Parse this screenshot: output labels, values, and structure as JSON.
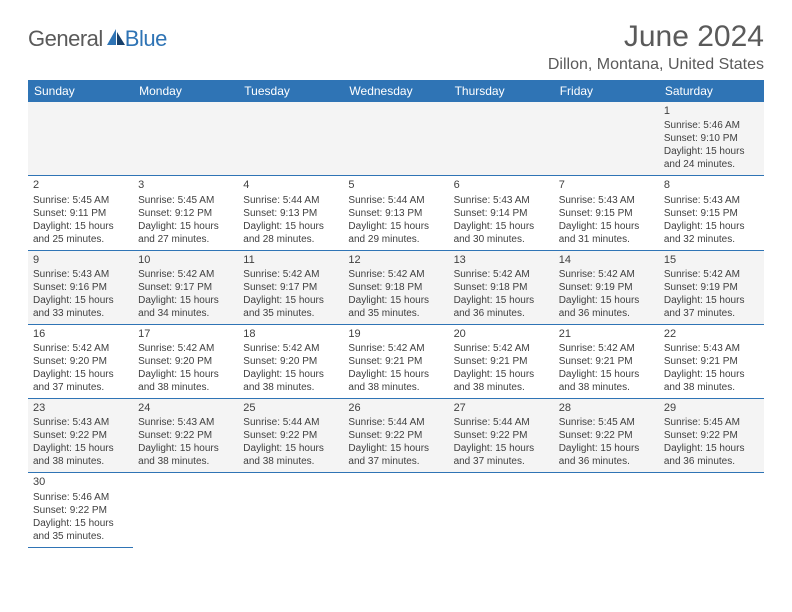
{
  "logo": {
    "part1": "General",
    "part2": "Blue"
  },
  "title": "June 2024",
  "location": "Dillon, Montana, United States",
  "colors": {
    "header_bg": "#2f74b5",
    "header_text": "#ffffff",
    "text": "#404040",
    "alt_row": "#f4f4f4",
    "border": "#2f74b5",
    "logo_gray": "#5a5a5a",
    "logo_blue": "#2f74b5"
  },
  "day_headers": [
    "Sunday",
    "Monday",
    "Tuesday",
    "Wednesday",
    "Thursday",
    "Friday",
    "Saturday"
  ],
  "weeks": [
    [
      null,
      null,
      null,
      null,
      null,
      null,
      {
        "n": "1",
        "sr": "5:46 AM",
        "ss": "9:10 PM",
        "dl": "15 hours and 24 minutes."
      }
    ],
    [
      {
        "n": "2",
        "sr": "5:45 AM",
        "ss": "9:11 PM",
        "dl": "15 hours and 25 minutes."
      },
      {
        "n": "3",
        "sr": "5:45 AM",
        "ss": "9:12 PM",
        "dl": "15 hours and 27 minutes."
      },
      {
        "n": "4",
        "sr": "5:44 AM",
        "ss": "9:13 PM",
        "dl": "15 hours and 28 minutes."
      },
      {
        "n": "5",
        "sr": "5:44 AM",
        "ss": "9:13 PM",
        "dl": "15 hours and 29 minutes."
      },
      {
        "n": "6",
        "sr": "5:43 AM",
        "ss": "9:14 PM",
        "dl": "15 hours and 30 minutes."
      },
      {
        "n": "7",
        "sr": "5:43 AM",
        "ss": "9:15 PM",
        "dl": "15 hours and 31 minutes."
      },
      {
        "n": "8",
        "sr": "5:43 AM",
        "ss": "9:15 PM",
        "dl": "15 hours and 32 minutes."
      }
    ],
    [
      {
        "n": "9",
        "sr": "5:43 AM",
        "ss": "9:16 PM",
        "dl": "15 hours and 33 minutes."
      },
      {
        "n": "10",
        "sr": "5:42 AM",
        "ss": "9:17 PM",
        "dl": "15 hours and 34 minutes."
      },
      {
        "n": "11",
        "sr": "5:42 AM",
        "ss": "9:17 PM",
        "dl": "15 hours and 35 minutes."
      },
      {
        "n": "12",
        "sr": "5:42 AM",
        "ss": "9:18 PM",
        "dl": "15 hours and 35 minutes."
      },
      {
        "n": "13",
        "sr": "5:42 AM",
        "ss": "9:18 PM",
        "dl": "15 hours and 36 minutes."
      },
      {
        "n": "14",
        "sr": "5:42 AM",
        "ss": "9:19 PM",
        "dl": "15 hours and 36 minutes."
      },
      {
        "n": "15",
        "sr": "5:42 AM",
        "ss": "9:19 PM",
        "dl": "15 hours and 37 minutes."
      }
    ],
    [
      {
        "n": "16",
        "sr": "5:42 AM",
        "ss": "9:20 PM",
        "dl": "15 hours and 37 minutes."
      },
      {
        "n": "17",
        "sr": "5:42 AM",
        "ss": "9:20 PM",
        "dl": "15 hours and 38 minutes."
      },
      {
        "n": "18",
        "sr": "5:42 AM",
        "ss": "9:20 PM",
        "dl": "15 hours and 38 minutes."
      },
      {
        "n": "19",
        "sr": "5:42 AM",
        "ss": "9:21 PM",
        "dl": "15 hours and 38 minutes."
      },
      {
        "n": "20",
        "sr": "5:42 AM",
        "ss": "9:21 PM",
        "dl": "15 hours and 38 minutes."
      },
      {
        "n": "21",
        "sr": "5:42 AM",
        "ss": "9:21 PM",
        "dl": "15 hours and 38 minutes."
      },
      {
        "n": "22",
        "sr": "5:43 AM",
        "ss": "9:21 PM",
        "dl": "15 hours and 38 minutes."
      }
    ],
    [
      {
        "n": "23",
        "sr": "5:43 AM",
        "ss": "9:22 PM",
        "dl": "15 hours and 38 minutes."
      },
      {
        "n": "24",
        "sr": "5:43 AM",
        "ss": "9:22 PM",
        "dl": "15 hours and 38 minutes."
      },
      {
        "n": "25",
        "sr": "5:44 AM",
        "ss": "9:22 PM",
        "dl": "15 hours and 38 minutes."
      },
      {
        "n": "26",
        "sr": "5:44 AM",
        "ss": "9:22 PM",
        "dl": "15 hours and 37 minutes."
      },
      {
        "n": "27",
        "sr": "5:44 AM",
        "ss": "9:22 PM",
        "dl": "15 hours and 37 minutes."
      },
      {
        "n": "28",
        "sr": "5:45 AM",
        "ss": "9:22 PM",
        "dl": "15 hours and 36 minutes."
      },
      {
        "n": "29",
        "sr": "5:45 AM",
        "ss": "9:22 PM",
        "dl": "15 hours and 36 minutes."
      }
    ],
    [
      {
        "n": "30",
        "sr": "5:46 AM",
        "ss": "9:22 PM",
        "dl": "15 hours and 35 minutes."
      },
      null,
      null,
      null,
      null,
      null,
      null
    ]
  ],
  "labels": {
    "sunrise": "Sunrise:",
    "sunset": "Sunset:",
    "daylight": "Daylight:"
  }
}
